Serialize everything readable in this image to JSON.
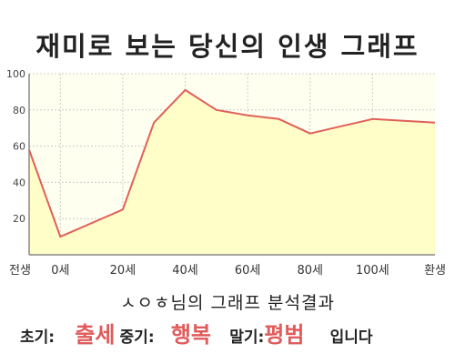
{
  "chart_data": {
    "type": "area",
    "title": "재미로 보는 당신의 인생 그래프",
    "x_tick_labels": [
      "전생",
      "0세",
      "20세",
      "40세",
      "60세",
      "80세",
      "100세",
      "환생"
    ],
    "x": [
      -10,
      0,
      20,
      30,
      40,
      50,
      60,
      70,
      80,
      90,
      100,
      110,
      120
    ],
    "values": [
      58,
      10,
      25,
      73,
      91,
      80,
      77,
      75,
      67,
      71,
      75,
      74,
      73
    ],
    "ylim": [
      0,
      100
    ],
    "y_ticks": [
      20,
      40,
      60,
      80,
      100
    ],
    "grid": true,
    "colors": {
      "fill": "#fffdc8",
      "line": "#e0605a",
      "plot_bg": "#fffff0",
      "grid": "#cccccc",
      "axis": "#888888"
    }
  },
  "result": {
    "title": "ㅅㅇㅎ님의 그래프 분석결과",
    "early_label": "초기:",
    "early_value": "출세",
    "middle_label": "중기:",
    "middle_value": "행복",
    "late_label": "말기:",
    "late_value": "평범",
    "ending": "입니다"
  }
}
